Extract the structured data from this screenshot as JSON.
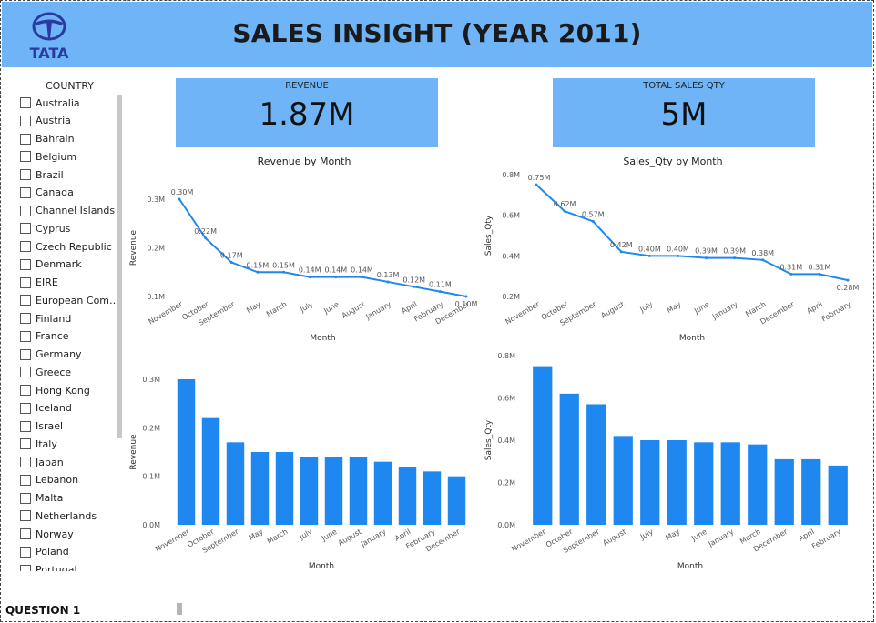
{
  "header": {
    "logo_text": "TATA",
    "title": "SALES INSIGHT (YEAR 2011)"
  },
  "slicer": {
    "title": "COUNTRY",
    "countries": [
      "Australia",
      "Austria",
      "Bahrain",
      "Belgium",
      "Brazil",
      "Canada",
      "Channel Islands",
      "Cyprus",
      "Czech Republic",
      "Denmark",
      "EIRE",
      "European Commu...",
      "Finland",
      "France",
      "Germany",
      "Greece",
      "Hong Kong",
      "Iceland",
      "Israel",
      "Italy",
      "Japan",
      "Lebanon",
      "Malta",
      "Netherlands",
      "Norway",
      "Poland",
      "Portugal"
    ]
  },
  "kpis": {
    "revenue": {
      "label": "REVENUE",
      "value": "1.87M"
    },
    "sales_qty": {
      "label": "TOTAL SALES QTY",
      "value": "5M"
    }
  },
  "footer": {
    "page_label": "QUESTION 1"
  },
  "colors": {
    "accent": "#6eb4f7",
    "series": "#1e88f0"
  },
  "chart_data": [
    {
      "type": "line",
      "title": "Revenue by Month",
      "xlabel": "Month",
      "ylabel": "Revenue",
      "yticks": [
        "0.1M",
        "0.2M",
        "0.3M"
      ],
      "ylim": [
        0.1,
        0.3
      ],
      "categories": [
        "November",
        "October",
        "September",
        "May",
        "March",
        "July",
        "June",
        "August",
        "January",
        "April",
        "February",
        "December"
      ],
      "values": [
        0.3,
        0.22,
        0.17,
        0.15,
        0.15,
        0.14,
        0.14,
        0.14,
        0.13,
        0.12,
        0.11,
        0.1
      ],
      "data_labels": [
        "0.30M",
        "0.22M",
        "0.17M",
        "0.15M",
        "0.15M",
        "0.14M",
        "0.14M",
        "0.14M",
        "0.13M",
        "0.12M",
        "0.11M",
        "0.10M"
      ]
    },
    {
      "type": "line",
      "title": "Sales_Qty by Month",
      "xlabel": "Month",
      "ylabel": "Sales_Qty",
      "yticks": [
        "0.2M",
        "0.4M",
        "0.6M",
        "0.8M"
      ],
      "ylim": [
        0.2,
        0.8
      ],
      "categories": [
        "November",
        "October",
        "September",
        "August",
        "July",
        "May",
        "June",
        "January",
        "March",
        "December",
        "April",
        "February"
      ],
      "values": [
        0.75,
        0.62,
        0.57,
        0.42,
        0.4,
        0.4,
        0.39,
        0.39,
        0.38,
        0.31,
        0.31,
        0.28
      ],
      "data_labels": [
        "0.75M",
        "0.62M",
        "0.57M",
        "0.42M",
        "0.40M",
        "0.40M",
        "0.39M",
        "0.39M",
        "0.38M",
        "0.31M",
        "0.31M",
        "0.28M"
      ]
    },
    {
      "type": "bar",
      "title": "",
      "xlabel": "Month",
      "ylabel": "Revenue",
      "yticks": [
        "0.0M",
        "0.1M",
        "0.2M",
        "0.3M"
      ],
      "ylim": [
        0,
        0.3
      ],
      "categories": [
        "November",
        "October",
        "September",
        "May",
        "March",
        "July",
        "June",
        "August",
        "January",
        "April",
        "February",
        "December"
      ],
      "values": [
        0.3,
        0.22,
        0.17,
        0.15,
        0.15,
        0.14,
        0.14,
        0.14,
        0.13,
        0.12,
        0.11,
        0.1
      ]
    },
    {
      "type": "bar",
      "title": "",
      "xlabel": "Month",
      "ylabel": "Sales_Qty",
      "yticks": [
        "0.0M",
        "0.2M",
        "0.4M",
        "0.6M",
        "0.8M"
      ],
      "ylim": [
        0,
        0.8
      ],
      "categories": [
        "November",
        "October",
        "September",
        "August",
        "July",
        "May",
        "June",
        "January",
        "March",
        "December",
        "April",
        "February"
      ],
      "values": [
        0.75,
        0.62,
        0.57,
        0.42,
        0.4,
        0.4,
        0.39,
        0.39,
        0.38,
        0.31,
        0.31,
        0.28
      ]
    }
  ]
}
